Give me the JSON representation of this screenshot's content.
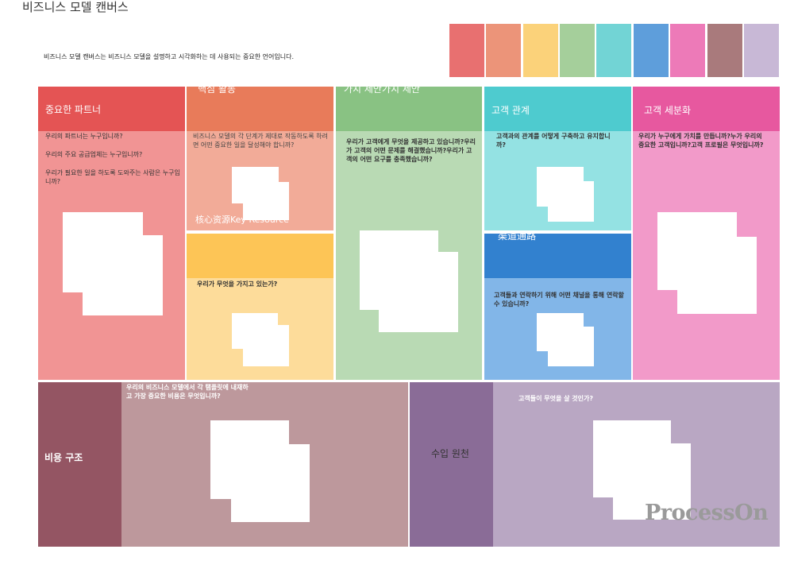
{
  "page": {
    "title": "비즈니스 모델 캔버스",
    "description": "비즈니스 모델 캔버스는 비즈니스 모델을 설명하고 시각화하는 데 사용되는 중요한 언어입니다."
  },
  "palette": [
    "#e87070",
    "#ec9479",
    "#fbd27a",
    "#a5cf9b",
    "#72d4d5",
    "#5e9edb",
    "#ed7ab8",
    "#a97a7c",
    "#c8b8d6"
  ],
  "blocks": {
    "key_partners": {
      "label": "중요한 파트너",
      "questions": [
        "우리의 파트너는 누구입니까?",
        "우리의 주요 공급업체는 누구입니까?",
        "우리가 필요한 일을 하도록 도와주는 사람은 누구입니까?"
      ],
      "colors": {
        "header": "#e45454",
        "body": "#f19494"
      }
    },
    "key_activities": {
      "label": "핵심 활동",
      "question": "비즈니스 모델의 각 단계가 제대로 작동하도록 하려면 어떤 중요한 일을 달성해야 합니까?",
      "colors": {
        "header": "#e87b5a",
        "body": "#f2ab98"
      }
    },
    "key_resources": {
      "label": "核心资源Key Resource",
      "question": "우리가 무엇을 가지고 있는가?",
      "colors": {
        "header": "#fdc556",
        "body": "#fddc9a"
      }
    },
    "value_proposition": {
      "label": "가치 제안가치 제안",
      "question": "우리가 고객에게 무엇을 제공하고 있습니까?우리가 고객의 어떤 문제를 해결했습니까?우리가 고객의 어떤 요구를 충족했습니까?",
      "colors": {
        "header": "#89c283",
        "body": "#b9dab4"
      }
    },
    "customer_relationships": {
      "label": "고객 관계",
      "question": "고객과의 관계를 어떻게 구축하고 유지합니까?",
      "colors": {
        "header": "#4ecbcf",
        "body": "#94e2e3"
      }
    },
    "channels": {
      "label": "渠道通路",
      "question": "고객들과 연락하기 위해 어떤 채널을 통해 연락할 수 있습니까?",
      "colors": {
        "header": "#3281cf",
        "body": "#82b6e8"
      }
    },
    "customer_segments": {
      "label": "고객 세분화",
      "question": "우리가 누구에게 가치를 만듭니까?누가 우리의 중요한 고객입니까?고객 프로필은 무엇입니까?",
      "colors": {
        "header": "#e7589f",
        "body": "#f29ac9"
      }
    },
    "cost_structure": {
      "label": "비용 구조",
      "question": "우리의 비즈니스 모델에서 각 탬플릿에 내재하고 가장 중요한 비용은 무엇입니까?",
      "colors": {
        "header": "#945563",
        "body": "#bd989c"
      }
    },
    "revenue_streams": {
      "label": "수입 원천",
      "question": "고객들이 무엇을 살 것인가?",
      "colors": {
        "header": "#8a6c97",
        "body": "#b9a7c3"
      }
    }
  },
  "watermark": "ProcessOn"
}
